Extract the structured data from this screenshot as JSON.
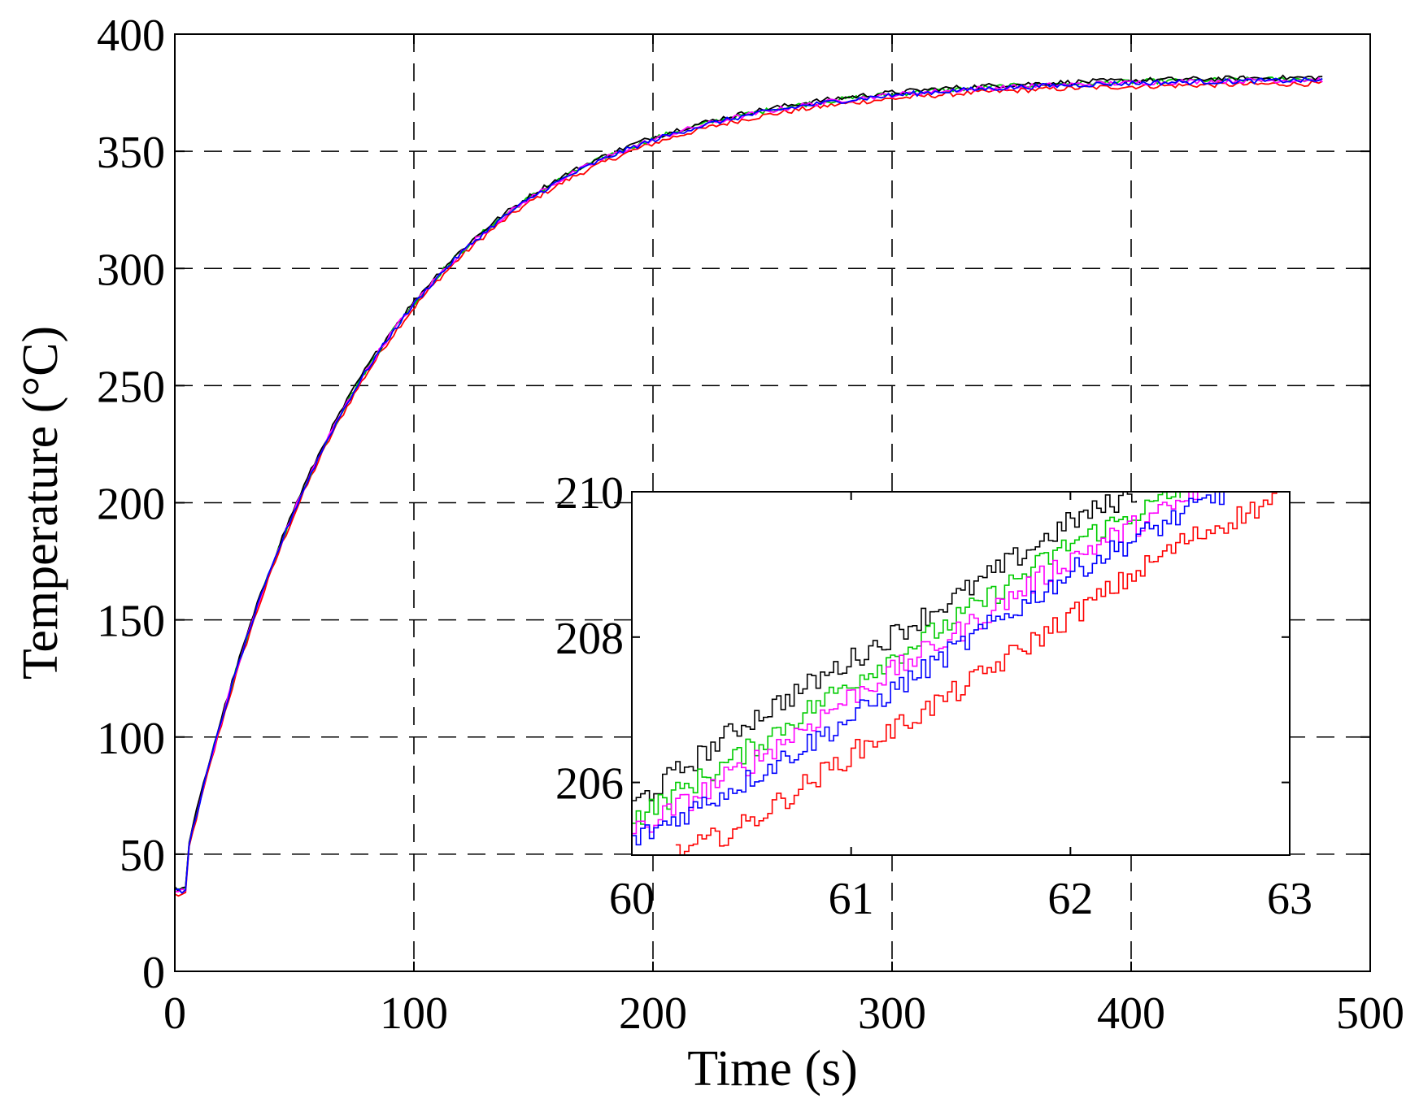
{
  "chart_data": [
    {
      "id": "main",
      "type": "line",
      "title": "",
      "xlabel": "Time (s)",
      "ylabel": "Temperature (°C)",
      "xlim": [
        0,
        500
      ],
      "ylim": [
        0,
        400
      ],
      "xticks": [
        0,
        100,
        200,
        300,
        400,
        500
      ],
      "yticks": [
        0,
        50,
        100,
        150,
        200,
        250,
        300,
        350,
        400
      ],
      "grid": "dashed",
      "legend": "none",
      "model": {
        "start_time": 5,
        "initial_temperature": 34,
        "jump_temperature": 50,
        "final_temperature": 381,
        "time_constant": 77,
        "end_time": 480
      },
      "series": [
        {
          "color": "#ff0000"
        },
        {
          "color": "#00cc00"
        },
        {
          "color": "#000000"
        },
        {
          "color": "#ff00ff"
        },
        {
          "color": "#0000ff"
        }
      ]
    },
    {
      "id": "inset",
      "type": "line",
      "xlim": [
        60,
        63
      ],
      "ylim": [
        205,
        210
      ],
      "xticks": [
        60,
        61,
        62,
        63
      ],
      "yticks": [
        206,
        208,
        210
      ],
      "grid": "off",
      "legend": "none",
      "series": [
        {
          "color": "#000000",
          "x": [
            60,
            60.5,
            61,
            61.5,
            62,
            62.3
          ],
          "y": [
            205.7,
            206.8,
            207.7,
            208.6,
            209.6,
            210
          ]
        },
        {
          "color": "#00cc00",
          "x": [
            60,
            60.5,
            61,
            61.5,
            62,
            62.5
          ],
          "y": [
            205.5,
            206.4,
            207.4,
            208.3,
            209.3,
            210
          ]
        },
        {
          "color": "#ff00ff",
          "x": [
            60,
            60.5,
            61,
            61.5,
            62,
            62.6
          ],
          "y": [
            205.3,
            206.2,
            207.2,
            208.1,
            209.1,
            210
          ]
        },
        {
          "color": "#0000ff",
          "x": [
            60,
            60.5,
            61,
            61.5,
            62,
            62.7
          ],
          "y": [
            205.2,
            206.0,
            206.9,
            207.9,
            208.9,
            210
          ]
        },
        {
          "color": "#ff0000",
          "x": [
            60.2,
            60.5,
            61,
            61.5,
            62,
            62.5,
            63
          ],
          "y": [
            205.0,
            205.4,
            206.4,
            207.3,
            208.3,
            209.3,
            210
          ]
        }
      ]
    }
  ]
}
